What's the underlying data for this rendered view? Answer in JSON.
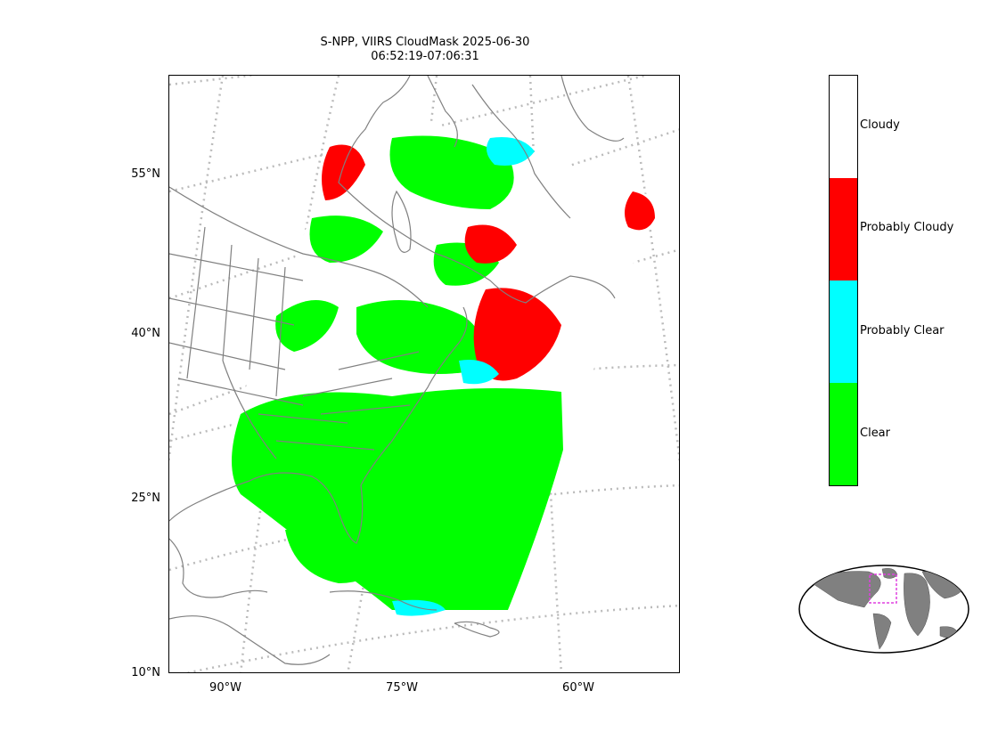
{
  "title": {
    "line1": "S-NPP, VIIRS CloudMask 2025-06-30",
    "line2": "06:52:19-07:06:31"
  },
  "map": {
    "lat_labels": [
      "55°N",
      "40°N",
      "25°N",
      "10°N"
    ],
    "lon_labels": [
      "90°W",
      "75°W",
      "60°W"
    ],
    "land_outline_color": "#808080",
    "gridline_color": "#bbbbbb"
  },
  "colorbar": {
    "categories": [
      {
        "label": "Cloudy",
        "color": "#ffffff"
      },
      {
        "label": "Probably Cloudy",
        "color": "#ff0000"
      },
      {
        "label": "Probably Clear",
        "color": "#00ffff"
      },
      {
        "label": "Clear",
        "color": "#00ff00"
      }
    ]
  },
  "inset": {
    "land_color": "#808080",
    "region_box_color": "#e040e0"
  }
}
